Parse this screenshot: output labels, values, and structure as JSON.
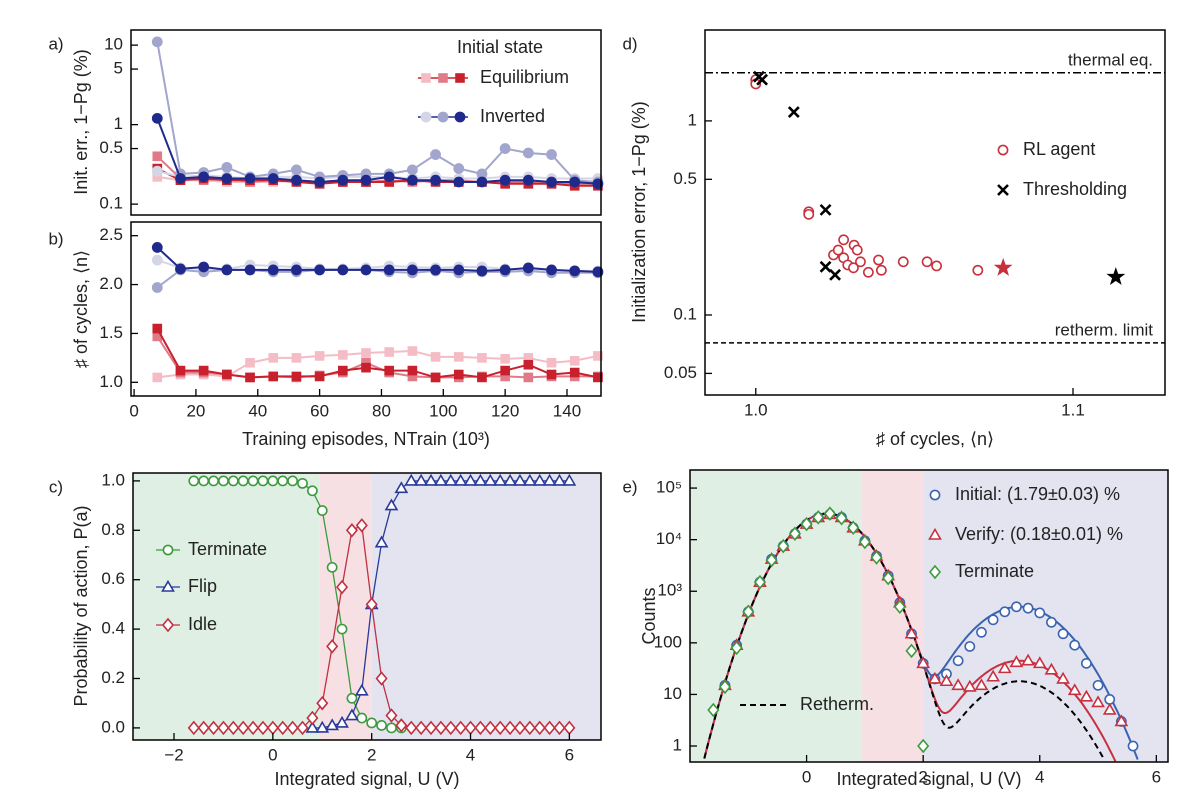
{
  "chart_data": [
    {
      "type": "line",
      "panel_label": "a)",
      "ylabel": "Init. err., 1−Pg (%)",
      "log_y": true,
      "x": [
        7.5,
        15,
        22.5,
        30,
        37.5,
        45,
        52.5,
        60,
        67.5,
        75,
        82.5,
        90,
        97.5,
        105,
        112.5,
        120,
        127.5,
        135,
        142.5,
        150
      ],
      "xlim": [
        -1,
        151
      ],
      "ylim": [
        0.073,
        15.5
      ],
      "yticks": [
        0.1,
        0.5,
        1,
        5,
        10
      ],
      "legend_title": "Initial state",
      "series": [
        {
          "name": "Equilibrium",
          "marker": "square",
          "filled": true,
          "colors": [
            "#f4bcc4",
            "#e07a88",
            "#c8202c"
          ],
          "values": [
            [
              0.22,
              0.2,
              0.2,
              0.19,
              0.19,
              0.19,
              0.2,
              0.19,
              0.19,
              0.19,
              0.19,
              0.2,
              0.2,
              0.19,
              0.19,
              0.2,
              0.19,
              0.19,
              0.19,
              0.19
            ],
            [
              0.4,
              0.21,
              0.2,
              0.21,
              0.19,
              0.2,
              0.2,
              0.19,
              0.2,
              0.19,
              0.2,
              0.19,
              0.2,
              0.2,
              0.19,
              0.19,
              0.19,
              0.19,
              0.18,
              0.18
            ],
            [
              0.28,
              0.2,
              0.21,
              0.2,
              0.2,
              0.2,
              0.19,
              0.18,
              0.19,
              0.19,
              0.19,
              0.2,
              0.19,
              0.19,
              0.19,
              0.18,
              0.18,
              0.18,
              0.17,
              0.17
            ]
          ]
        },
        {
          "name": "Inverted",
          "marker": "circle",
          "filled": true,
          "colors": [
            "#d4d6e8",
            "#a2a6cc",
            "#1f2a8c"
          ],
          "values": [
            [
              0.26,
              0.22,
              0.23,
              0.22,
              0.21,
              0.22,
              0.22,
              0.21,
              0.22,
              0.22,
              0.22,
              0.21,
              0.22,
              0.21,
              0.21,
              0.22,
              0.22,
              0.21,
              0.21,
              0.21
            ],
            [
              11,
              0.24,
              0.25,
              0.29,
              0.22,
              0.24,
              0.27,
              0.22,
              0.23,
              0.24,
              0.24,
              0.27,
              0.42,
              0.28,
              0.24,
              0.5,
              0.44,
              0.42,
              0.2,
              0.19
            ],
            [
              1.2,
              0.21,
              0.22,
              0.21,
              0.21,
              0.21,
              0.2,
              0.19,
              0.2,
              0.2,
              0.22,
              0.2,
              0.2,
              0.19,
              0.19,
              0.2,
              0.2,
              0.19,
              0.19,
              0.18
            ]
          ]
        }
      ]
    },
    {
      "type": "line",
      "panel_label": "b)",
      "ylabel": "♯ of cycles, ⟨n⟩",
      "xlabel": "Training episodes, NTrain (10³)",
      "x": [
        7.5,
        15,
        22.5,
        30,
        37.5,
        45,
        52.5,
        60,
        67.5,
        75,
        82.5,
        90,
        97.5,
        105,
        112.5,
        120,
        127.5,
        135,
        142.5,
        150
      ],
      "xlim": [
        -1,
        151
      ],
      "xticks": [
        0,
        20,
        40,
        60,
        80,
        100,
        120,
        140
      ],
      "ylim": [
        0.86,
        2.64
      ],
      "yticks": [
        {
          "value": 1,
          "label": "1.0"
        },
        1.5,
        {
          "value": 2,
          "label": "2.0"
        },
        2.5
      ],
      "series": [
        {
          "marker": "square",
          "filled": true,
          "colors": [
            "#f4bcc4",
            "#e07a88",
            "#c8202c"
          ],
          "values": [
            [
              1.05,
              1.08,
              1.08,
              1.06,
              1.2,
              1.25,
              1.25,
              1.27,
              1.28,
              1.3,
              1.31,
              1.32,
              1.26,
              1.26,
              1.25,
              1.24,
              1.25,
              1.2,
              1.22,
              1.27
            ],
            [
              1.47,
              1.1,
              1.1,
              1.08,
              1.05,
              1.06,
              1.05,
              1.07,
              1.1,
              1.2,
              1.1,
              1.06,
              1.05,
              1.05,
              1.06,
              1.06,
              1.05,
              1.06,
              1.06,
              1.06
            ],
            [
              1.55,
              1.12,
              1.12,
              1.08,
              1.05,
              1.06,
              1.06,
              1.06,
              1.12,
              1.15,
              1.12,
              1.12,
              1.05,
              1.08,
              1.05,
              1.12,
              1.18,
              1.08,
              1.1,
              1.05
            ]
          ]
        },
        {
          "marker": "circle",
          "filled": true,
          "colors": [
            "#d4d6e8",
            "#a2a6cc",
            "#1f2a8c"
          ],
          "values": [
            [
              2.25,
              2.17,
              2.16,
              2.16,
              2.2,
              2.19,
              2.18,
              2.16,
              2.16,
              2.17,
              2.19,
              2.18,
              2.17,
              2.18,
              2.18,
              2.16,
              2.15,
              2.15,
              2.14,
              2.14
            ],
            [
              1.97,
              2.15,
              2.13,
              2.15,
              2.15,
              2.13,
              2.13,
              2.15,
              2.15,
              2.15,
              2.13,
              2.12,
              2.14,
              2.12,
              2.13,
              2.13,
              2.14,
              2.12,
              2.12,
              2.12
            ],
            [
              2.38,
              2.16,
              2.18,
              2.15,
              2.15,
              2.15,
              2.15,
              2.15,
              2.15,
              2.15,
              2.15,
              2.15,
              2.15,
              2.15,
              2.14,
              2.15,
              2.17,
              2.15,
              2.14,
              2.13
            ]
          ]
        }
      ]
    },
    {
      "type": "line",
      "panel_label": "c)",
      "ylabel": "Probability of action, P(a)",
      "xlabel": "Integrated signal, U (V)",
      "x": [
        -1.6,
        -1.4,
        -1.2,
        -1,
        -0.8,
        -0.6,
        -0.4,
        -0.2,
        0,
        0.2,
        0.4,
        0.6,
        0.8,
        1,
        1.2,
        1.4,
        1.6,
        1.8,
        2,
        2.2,
        2.4,
        2.6,
        2.8,
        3,
        3.2,
        3.4,
        3.6,
        3.8,
        4,
        4.2,
        4.4,
        4.6,
        4.8,
        5,
        5.2,
        5.4,
        5.6,
        5.8,
        6
      ],
      "xlim": [
        -2.83,
        6.64
      ],
      "xticks": [
        {
          "value": -2,
          "label": "−2"
        },
        0,
        2,
        4,
        6
      ],
      "ylim": [
        -0.049,
        1.032
      ],
      "yticks": [
        {
          "value": 0,
          "label": "0.0"
        },
        0.2,
        0.4,
        0.6,
        0.8,
        {
          "value": 1,
          "label": "1.0"
        }
      ],
      "regions": [
        {
          "from": -2.83,
          "to": 0.95,
          "color": "#dfefe4"
        },
        {
          "from": 0.95,
          "to": 2.0,
          "color": "#f7e0e3"
        },
        {
          "from": 2.0,
          "to": 6.64,
          "color": "#e3e4f0"
        }
      ],
      "series": [
        {
          "name": "Terminate",
          "marker": "circle",
          "color": "#3c9a3c",
          "values": [
            1,
            1,
            1,
            1,
            1,
            1,
            1,
            1,
            1,
            1,
            1,
            0.99,
            0.96,
            0.88,
            0.65,
            0.4,
            0.12,
            0.04,
            0.02,
            0.01,
            0,
            0,
            null,
            null,
            null,
            null,
            null,
            null,
            null,
            null,
            null,
            null,
            null,
            null,
            null,
            null,
            null,
            null,
            null
          ]
        },
        {
          "name": "Flip",
          "marker": "triangle",
          "color": "#2a3a9a",
          "values": [
            null,
            null,
            null,
            null,
            null,
            null,
            null,
            null,
            null,
            null,
            null,
            null,
            0,
            0,
            0.01,
            0.02,
            0.05,
            0.15,
            0.5,
            0.75,
            0.9,
            0.97,
            1,
            1,
            1,
            1,
            1,
            1,
            1,
            1,
            1,
            1,
            1,
            1,
            1,
            1,
            1,
            1,
            1
          ]
        },
        {
          "name": "Idle",
          "marker": "diamond",
          "color": "#c03040",
          "values": [
            0,
            0,
            0,
            0,
            0,
            0,
            0,
            0,
            0,
            0,
            0,
            0,
            0.04,
            0.1,
            0.33,
            0.57,
            0.8,
            0.82,
            0.5,
            0.2,
            0.05,
            0.01,
            0,
            0,
            0,
            0,
            0,
            0,
            0,
            0,
            0,
            0,
            0,
            0,
            0,
            0,
            0,
            0,
            0
          ]
        }
      ]
    },
    {
      "type": "scatter",
      "panel_label": "d)",
      "ylabel": "Initialization error, 1−Pg (%)",
      "xlabel": "♯ of cycles, ⟨n⟩",
      "log_y": true,
      "xlim": [
        0.984,
        1.129
      ],
      "xticks": [
        {
          "value": 1,
          "label": "1.0"
        },
        1.1
      ],
      "ylim": [
        0.0387,
        2.94
      ],
      "yticks": [
        0.05,
        0.1,
        0.5,
        1
      ],
      "hlines": [
        {
          "value": 1.77,
          "label": "thermal eq.",
          "dash": "8 3 2 3"
        },
        {
          "value": 0.0718,
          "label": "retherm. limit",
          "dash": "5 3"
        }
      ],
      "series": [
        {
          "name": "RL agent",
          "marker": "circle",
          "color": "#c8303c",
          "x": [
            1.0,
            1.0,
            1.0167,
            1.0167,
            1.0277,
            1.031,
            1.032,
            1.0277,
            1.0245,
            1.029,
            1.033,
            1.0355,
            1.0387,
            1.0396,
            1.0308,
            1.0465,
            1.054,
            1.057,
            1.07,
            1.026
          ],
          "values": [
            1.63,
            1.55,
            0.34,
            0.33,
            0.244,
            0.229,
            0.216,
            0.197,
            0.204,
            0.181,
            0.188,
            0.166,
            0.192,
            0.17,
            0.175,
            0.188,
            0.188,
            0.179,
            0.17,
            0.216
          ],
          "star": {
            "x": 1.078,
            "y": 0.175
          }
        },
        {
          "name": "Thresholding",
          "marker": "cross",
          "color": "#000000",
          "x": [
            1.001,
            1.002,
            1.012,
            1.022,
            1.022,
            1.025
          ],
          "values": [
            1.69,
            1.63,
            1.11,
            0.348,
            0.177,
            0.161
          ],
          "star": {
            "x": 1.1135,
            "y": 0.157
          }
        }
      ]
    },
    {
      "type": "scatter",
      "panel_label": "e)",
      "ylabel": "Counts",
      "xlabel": "Integrated signal, U (V)",
      "log_y": true,
      "xlim": [
        -2.0,
        6.2
      ],
      "xticks": [
        0,
        2,
        4,
        6
      ],
      "ylim": [
        0.49,
        224000
      ],
      "yticks": [
        1,
        10,
        100,
        {
          "value": 1000,
          "label": "10³"
        },
        {
          "value": 10000,
          "label": "10⁴"
        },
        {
          "value": 100000,
          "label": "10⁵"
        }
      ],
      "regions": [
        {
          "from": -2.0,
          "to": 0.95,
          "color": "#dfefe4"
        },
        {
          "from": 0.95,
          "to": 2.0,
          "color": "#f7e0e3"
        },
        {
          "from": 2.0,
          "to": 6.2,
          "color": "#e3e4f0"
        }
      ],
      "fits": [
        {
          "color": "#3a64b0",
          "components": [
            {
              "amplitude": 32000,
              "mean": 0.35,
              "sigma": 0.45
            },
            {
              "amplitude": 500,
              "mean": 3.65,
              "sigma": 0.55
            }
          ]
        },
        {
          "color": "#c83040",
          "components": [
            {
              "amplitude": 32000,
              "mean": 0.35,
              "sigma": 0.45
            },
            {
              "amplitude": 45,
              "mean": 3.65,
              "sigma": 0.55
            }
          ]
        },
        {
          "name": "Retherm.",
          "color": "#000000",
          "dash": "6 4",
          "components": [
            {
              "amplitude": 32000,
              "mean": 0.35,
              "sigma": 0.45
            },
            {
              "amplitude": 18,
              "mean": 3.65,
              "sigma": 0.55
            }
          ]
        }
      ],
      "series": [
        {
          "name": "Initial: (1.79±0.03) %",
          "marker": "circle",
          "color": "#3a64b0",
          "x": [
            -1.4,
            -1.2,
            -1,
            -0.8,
            -0.6,
            -0.4,
            -0.2,
            0,
            0.2,
            0.4,
            0.6,
            0.8,
            1,
            1.2,
            1.4,
            1.6,
            1.8,
            2,
            2.2,
            2.4,
            2.6,
            2.8,
            3,
            3.2,
            3.4,
            3.6,
            3.8,
            4,
            4.2,
            4.4,
            4.6,
            4.8,
            5,
            5.2,
            5.4,
            5.6
          ],
          "values": [
            15,
            90,
            400,
            1500,
            4200,
            7500,
            13000,
            20000,
            27000,
            31000,
            27000,
            17000,
            9500,
            4800,
            2000,
            600,
            150,
            40,
            20,
            25,
            45,
            85,
            160,
            280,
            400,
            500,
            470,
            380,
            250,
            150,
            90,
            40,
            15,
            8,
            3,
            1
          ]
        },
        {
          "name": "Verify: (0.18±0.01) %",
          "marker": "triangle",
          "color": "#c83040",
          "x": [
            -1.4,
            -1.2,
            -1,
            -0.8,
            -0.6,
            -0.4,
            -0.2,
            0,
            0.2,
            0.4,
            0.6,
            0.8,
            1,
            1.2,
            1.4,
            1.6,
            1.8,
            2,
            2.2,
            2.4,
            2.6,
            2.8,
            3,
            3.2,
            3.4,
            3.6,
            3.8,
            4,
            4.2,
            4.4,
            4.6,
            4.8,
            5,
            5.2,
            5.4,
            5.6
          ],
          "values": [
            15,
            90,
            400,
            1500,
            4200,
            7500,
            13000,
            20000,
            27000,
            31000,
            27000,
            17000,
            9500,
            4800,
            2000,
            600,
            150,
            40,
            20,
            18,
            15,
            14,
            15,
            22,
            32,
            42,
            45,
            40,
            30,
            20,
            12,
            9,
            7,
            5,
            3,
            null
          ]
        },
        {
          "name": "Terminate",
          "marker": "diamond",
          "color": "#3c9a3c",
          "x": [
            -1.6,
            -1.4,
            -1.2,
            -1,
            -0.8,
            -0.6,
            -0.4,
            -0.2,
            0,
            0.2,
            0.4,
            0.6,
            0.8,
            1,
            1.2,
            1.4,
            1.6,
            1.8,
            2
          ],
          "values": [
            5,
            14,
            80,
            400,
            1500,
            4000,
            7500,
            13000,
            20000,
            27000,
            32000,
            26000,
            17000,
            9000,
            4500,
            1800,
            500,
            70,
            1
          ]
        }
      ]
    }
  ]
}
